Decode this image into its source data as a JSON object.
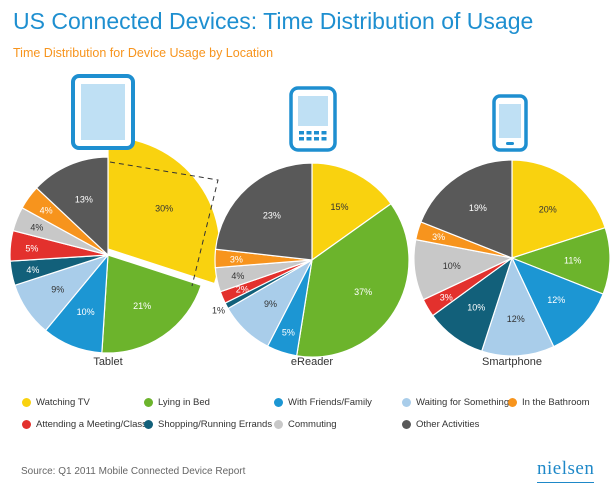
{
  "header": {
    "title": "US Connected Devices: Time Distribution of Usage",
    "subtitle": "Time Distribution for Device Usage by Location"
  },
  "chart_data": {
    "type": "pie",
    "title": "US Connected Devices: Time Distribution of Usage",
    "subtitle": "Time Distribution for Device Usage by Location",
    "categories": [
      "Watching TV",
      "Lying in Bed",
      "With Friends/Family",
      "Waiting for Something",
      "In the Bathroom",
      "Attending a Meeting/Class",
      "Shopping/Running Errands",
      "Commuting",
      "Other Activities"
    ],
    "colors": {
      "Watching TV": "#f9d20f",
      "Lying in Bed": "#6cb42c",
      "With Friends/Family": "#1c96d3",
      "Waiting for Something": "#a9cdea",
      "In the Bathroom": "#f7941d",
      "Attending a Meeting/Class": "#e3312d",
      "Shopping/Running Errands": "#12607a",
      "Commuting": "#c8c8c8",
      "Other Activities": "#595959"
    },
    "pies": [
      {
        "name": "Tablet",
        "icon": "tablet-icon",
        "slices": [
          {
            "category": "Watching TV",
            "value": 30,
            "label": "30%"
          },
          {
            "category": "Lying in Bed",
            "value": 21,
            "label": "21%"
          },
          {
            "category": "With Friends/Family",
            "value": 10,
            "label": "10%"
          },
          {
            "category": "Waiting for Something",
            "value": 9,
            "label": "9%"
          },
          {
            "category": "Shopping/Running Errands",
            "value": 4,
            "label": "4%"
          },
          {
            "category": "Attending a Meeting/Class",
            "value": 5,
            "label": "5%"
          },
          {
            "category": "Commuting",
            "value": 4,
            "label": "4%"
          },
          {
            "category": "In the Bathroom",
            "value": 4,
            "label": "4%"
          },
          {
            "category": "Other Activities",
            "value": 13,
            "label": "13%"
          }
        ]
      },
      {
        "name": "eReader",
        "icon": "ereader-icon",
        "slices": [
          {
            "category": "Watching TV",
            "value": 15,
            "label": "15%"
          },
          {
            "category": "Lying in Bed",
            "value": 37,
            "label": "37%"
          },
          {
            "category": "With Friends/Family",
            "value": 5,
            "label": "5%"
          },
          {
            "category": "Waiting for Something",
            "value": 9,
            "label": "9%"
          },
          {
            "category": "Shopping/Running Errands",
            "value": 1,
            "label": "1%"
          },
          {
            "category": "Attending a Meeting/Class",
            "value": 2,
            "label": "2%"
          },
          {
            "category": "Commuting",
            "value": 4,
            "label": "4%"
          },
          {
            "category": "In the Bathroom",
            "value": 3,
            "label": "3%"
          },
          {
            "category": "Other Activities",
            "value": 23,
            "label": "23%"
          }
        ]
      },
      {
        "name": "Smartphone",
        "icon": "smartphone-icon",
        "slices": [
          {
            "category": "Watching TV",
            "value": 20,
            "label": "20%"
          },
          {
            "category": "Lying in Bed",
            "value": 11,
            "label": "11%"
          },
          {
            "category": "With Friends/Family",
            "value": 12,
            "label": "12%"
          },
          {
            "category": "Waiting for Something",
            "value": 12,
            "label": "12%"
          },
          {
            "category": "Shopping/Running Errands",
            "value": 10,
            "label": "10%"
          },
          {
            "category": "Attending a Meeting/Class",
            "value": 3,
            "label": "3%"
          },
          {
            "category": "Commuting",
            "value": 10,
            "label": "10%"
          },
          {
            "category": "In the Bathroom",
            "value": 3,
            "label": "3%"
          },
          {
            "category": "Other Activities",
            "value": 19,
            "label": "19%"
          }
        ]
      }
    ],
    "legend": [
      {
        "label": "Watching TV",
        "category": "Watching TV"
      },
      {
        "label": "Lying in Bed",
        "category": "Lying in Bed"
      },
      {
        "label": "With Friends/Family",
        "category": "With Friends/Family"
      },
      {
        "label": "Waiting for Something",
        "category": "Waiting for Something"
      },
      {
        "label": "In the Bathroom",
        "category": "In the Bathroom"
      },
      {
        "label": "Attending a Meeting/Class",
        "category": "Attending a Meeting/Class"
      },
      {
        "label": "Shopping/Running Errands",
        "category": "Shopping/Running Errands"
      },
      {
        "label": "Commuting",
        "category": "Commuting"
      },
      {
        "label": "Other Activities",
        "category": "Other Activities"
      }
    ],
    "legend_placement": "bottom"
  },
  "footer": {
    "source": "Source: Q1 2011 Mobile Connected Device Report",
    "logo": "nielsen"
  }
}
